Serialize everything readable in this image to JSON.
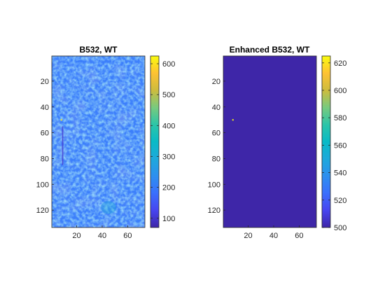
{
  "chart_data": [
    {
      "type": "heatmap",
      "title": "B532, WT",
      "xlabel": "",
      "ylabel": "",
      "x_range": [
        1,
        73
      ],
      "y_range": [
        1,
        133
      ],
      "y_direction": "reversed",
      "x_ticks": [
        20,
        40,
        60
      ],
      "y_ticks": [
        20,
        40,
        60,
        80,
        100,
        120
      ],
      "colormap": "parula",
      "colorbar": {
        "clim": [
          70,
          625
        ],
        "ticks": [
          100,
          200,
          300,
          400,
          500,
          600
        ]
      },
      "base_value": 225,
      "features": [
        {
          "kind": "hot-pixel",
          "x": 8,
          "y": 50,
          "value": 600
        },
        {
          "kind": "dark-streak",
          "x": 9,
          "y_start": 55,
          "y_end": 85,
          "value": 100
        },
        {
          "kind": "bright-patch",
          "x": 45,
          "y": 118,
          "value": 300
        }
      ]
    },
    {
      "type": "heatmap",
      "title": "Enhanced B532, WT",
      "xlabel": "",
      "ylabel": "",
      "x_range": [
        1,
        73
      ],
      "y_range": [
        1,
        133
      ],
      "y_direction": "reversed",
      "x_ticks": [
        20,
        40,
        60
      ],
      "y_ticks": [
        20,
        40,
        60,
        80,
        100,
        120
      ],
      "colormap": "parula",
      "colorbar": {
        "clim": [
          500,
          625
        ],
        "ticks": [
          500,
          520,
          540,
          560,
          580,
          600,
          620
        ]
      },
      "base_value": 500,
      "features": [
        {
          "kind": "hot-pixel",
          "x": 8,
          "y": 50,
          "value": 625
        }
      ]
    }
  ]
}
